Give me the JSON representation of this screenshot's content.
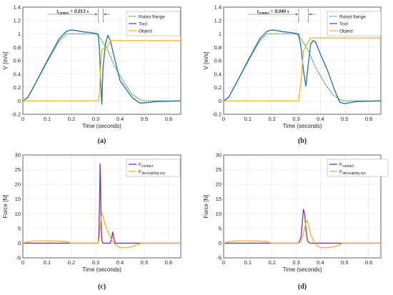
{
  "colors": {
    "robot_flange": "#2e8b3e",
    "tool": "#1f6f9c",
    "object": "#f0b323",
    "f_contact": "#7b2fa6",
    "f_decoupling": "#f0b323"
  },
  "chart_data": [
    {
      "panel": "(a)",
      "type": "line",
      "xlabel": "Time (seconds)",
      "ylabel": "V [m/s]",
      "xlim": [
        0,
        0.65
      ],
      "ylim": [
        -0.2,
        1.4
      ],
      "xticks": [
        "0",
        "0.1",
        "0.2",
        "0.3",
        "0.4",
        "0.5",
        "0.6"
      ],
      "yticks": [
        "-0.2",
        "0",
        "0.2",
        "0.4",
        "0.6",
        "0.8",
        "1",
        "1.2",
        "1.4"
      ],
      "grid": true,
      "legend": "top-right",
      "annotation": {
        "label": "t",
        "sub": "contact",
        "value": "= 0.013 s",
        "x_range": [
          0.31,
          0.33
        ]
      },
      "series": [
        {
          "name": "Robot flange",
          "style": "dotted",
          "color_key": "robot_flange",
          "x": [
            0,
            0.02,
            0.05,
            0.1,
            0.15,
            0.18,
            0.2,
            0.25,
            0.3,
            0.32,
            0.35,
            0.38,
            0.42,
            0.45,
            0.48,
            0.5,
            0.65
          ],
          "y": [
            0,
            0.05,
            0.25,
            0.58,
            0.9,
            1.0,
            1.0,
            1.0,
            1.0,
            0.93,
            0.75,
            0.5,
            0.25,
            0.1,
            0.02,
            0,
            0
          ]
        },
        {
          "name": "Tool",
          "style": "solid",
          "color_key": "tool",
          "x": [
            0,
            0.02,
            0.05,
            0.1,
            0.15,
            0.18,
            0.2,
            0.22,
            0.25,
            0.28,
            0.31,
            0.315,
            0.32,
            0.325,
            0.33,
            0.34,
            0.35,
            0.36,
            0.38,
            0.4,
            0.45,
            0.48,
            0.5,
            0.55,
            0.65
          ],
          "y": [
            0,
            0.05,
            0.25,
            0.6,
            0.93,
            1.04,
            1.06,
            1.05,
            1.03,
            1.02,
            1.0,
            0.8,
            0.3,
            -0.05,
            0.5,
            0.85,
            0.98,
            0.9,
            0.6,
            0.3,
            0.05,
            -0.03,
            -0.03,
            -0.01,
            0
          ]
        },
        {
          "name": "Object",
          "style": "solid",
          "color_key": "object",
          "x": [
            0,
            0.31,
            0.315,
            0.32,
            0.325,
            0.33,
            0.34,
            0.35,
            0.36,
            0.4,
            0.65
          ],
          "y": [
            0,
            0,
            0.1,
            0.5,
            0.75,
            0.78,
            0.78,
            0.82,
            0.9,
            0.9,
            0.9
          ]
        }
      ]
    },
    {
      "panel": "(b)",
      "type": "line",
      "xlabel": "Time (seconds)",
      "ylabel": "V [m/s]",
      "xlim": [
        0,
        0.65
      ],
      "ylim": [
        -0.2,
        1.4
      ],
      "xticks": [
        "0",
        "0.1",
        "0.2",
        "0.3",
        "0.4",
        "0.5",
        "0.6"
      ],
      "yticks": [
        "-0.2",
        "0",
        "0.2",
        "0.4",
        "0.6",
        "0.8",
        "1",
        "1.2",
        "1.4"
      ],
      "grid": true,
      "legend": "top-right",
      "annotation": {
        "label": "t",
        "sub": "contact",
        "value": "= 0.040 s",
        "x_range": [
          0.31,
          0.35
        ]
      },
      "series": [
        {
          "name": "Robot flange",
          "style": "dotted",
          "color_key": "robot_flange",
          "x": [
            0,
            0.02,
            0.05,
            0.1,
            0.15,
            0.18,
            0.2,
            0.25,
            0.3,
            0.32,
            0.35,
            0.38,
            0.42,
            0.45,
            0.48,
            0.5,
            0.65
          ],
          "y": [
            0,
            0.05,
            0.25,
            0.58,
            0.9,
            1.0,
            1.0,
            1.0,
            1.0,
            0.93,
            0.75,
            0.5,
            0.25,
            0.1,
            0.02,
            0,
            0
          ]
        },
        {
          "name": "Tool",
          "style": "solid",
          "color_key": "tool",
          "x": [
            0,
            0.02,
            0.05,
            0.1,
            0.15,
            0.18,
            0.2,
            0.22,
            0.25,
            0.28,
            0.31,
            0.32,
            0.33,
            0.34,
            0.35,
            0.36,
            0.37,
            0.38,
            0.4,
            0.43,
            0.46,
            0.48,
            0.5,
            0.55,
            0.65
          ],
          "y": [
            0,
            0.05,
            0.25,
            0.6,
            0.93,
            1.04,
            1.06,
            1.05,
            1.03,
            1.02,
            1.0,
            0.8,
            0.45,
            0.22,
            0.55,
            0.85,
            0.9,
            0.88,
            0.7,
            0.45,
            0.15,
            -0.02,
            -0.04,
            -0.01,
            0
          ]
        },
        {
          "name": "Object",
          "style": "solid",
          "color_key": "object",
          "x": [
            0,
            0.31,
            0.32,
            0.33,
            0.34,
            0.35,
            0.36,
            0.65
          ],
          "y": [
            0,
            0,
            0.3,
            0.75,
            0.82,
            0.88,
            0.94,
            0.94
          ]
        }
      ]
    },
    {
      "panel": "(c)",
      "type": "line",
      "xlabel": "Time (seconds)",
      "ylabel": "Force [N]",
      "xlim": [
        0,
        0.65
      ],
      "ylim": [
        -5,
        30
      ],
      "xticks": [
        "0",
        "0.1",
        "0.2",
        "0.3",
        "0.4",
        "0.5",
        "0.6"
      ],
      "yticks": [
        "-5",
        "0",
        "5",
        "10",
        "15",
        "20",
        "25",
        "30"
      ],
      "grid": true,
      "legend": "top-right",
      "series": [
        {
          "name": "F",
          "sub": "contact",
          "style": "solid",
          "color_key": "f_contact",
          "x": [
            0,
            0.31,
            0.313,
            0.316,
            0.318,
            0.32,
            0.322,
            0.325,
            0.33,
            0.36,
            0.365,
            0.37,
            0.375,
            0.38,
            0.65
          ],
          "y": [
            0,
            0,
            3,
            15,
            27,
            20,
            8,
            1,
            0,
            0,
            1.5,
            3.8,
            1.5,
            0,
            0
          ]
        },
        {
          "name": "F",
          "sub": "decoupling sys",
          "style": "solid",
          "color_key": "f_decoupling",
          "x": [
            0,
            0.02,
            0.05,
            0.1,
            0.15,
            0.18,
            0.19,
            0.2,
            0.31,
            0.315,
            0.32,
            0.325,
            0.33,
            0.34,
            0.35,
            0.36,
            0.37,
            0.38,
            0.4,
            0.43,
            0.45,
            0.47,
            0.49,
            0.65
          ],
          "y": [
            0,
            0.5,
            0.8,
            0.8,
            0.7,
            0.6,
            0.2,
            0,
            0,
            2,
            7,
            10.3,
            9,
            6,
            4,
            2,
            0.5,
            -0.5,
            -1.5,
            -1.5,
            -1.2,
            -0.5,
            0,
            0
          ]
        }
      ]
    },
    {
      "panel": "(d)",
      "type": "line",
      "xlabel": "Time (seconds)",
      "ylabel": "Force [N]",
      "xlim": [
        0,
        0.65
      ],
      "ylim": [
        -5,
        30
      ],
      "xticks": [
        "0",
        "0.1",
        "0.2",
        "0.3",
        "0.4",
        "0.5",
        "0.6"
      ],
      "yticks": [
        "-5",
        "0",
        "5",
        "10",
        "15",
        "20",
        "25",
        "30"
      ],
      "grid": true,
      "legend": "top-right",
      "series": [
        {
          "name": "F",
          "sub": "contact",
          "style": "solid",
          "color_key": "f_contact",
          "x": [
            0,
            0.31,
            0.32,
            0.325,
            0.33,
            0.335,
            0.34,
            0.345,
            0.35,
            0.36,
            0.65
          ],
          "y": [
            0,
            0,
            2,
            7,
            11.5,
            10,
            5,
            1.5,
            0.3,
            0,
            0
          ]
        },
        {
          "name": "F",
          "sub": "decoupling sys",
          "style": "solid",
          "color_key": "f_decoupling",
          "x": [
            0,
            0.02,
            0.05,
            0.1,
            0.15,
            0.18,
            0.19,
            0.2,
            0.31,
            0.32,
            0.33,
            0.34,
            0.345,
            0.35,
            0.36,
            0.37,
            0.38,
            0.4,
            0.43,
            0.46,
            0.48,
            0.49,
            0.65
          ],
          "y": [
            0,
            0.5,
            0.8,
            0.8,
            0.7,
            0.6,
            0.2,
            0,
            0,
            0.5,
            3,
            7,
            7.8,
            6.5,
            3,
            1,
            -0.5,
            -1.5,
            -1.5,
            -1.2,
            -0.5,
            0,
            0
          ]
        }
      ]
    }
  ]
}
